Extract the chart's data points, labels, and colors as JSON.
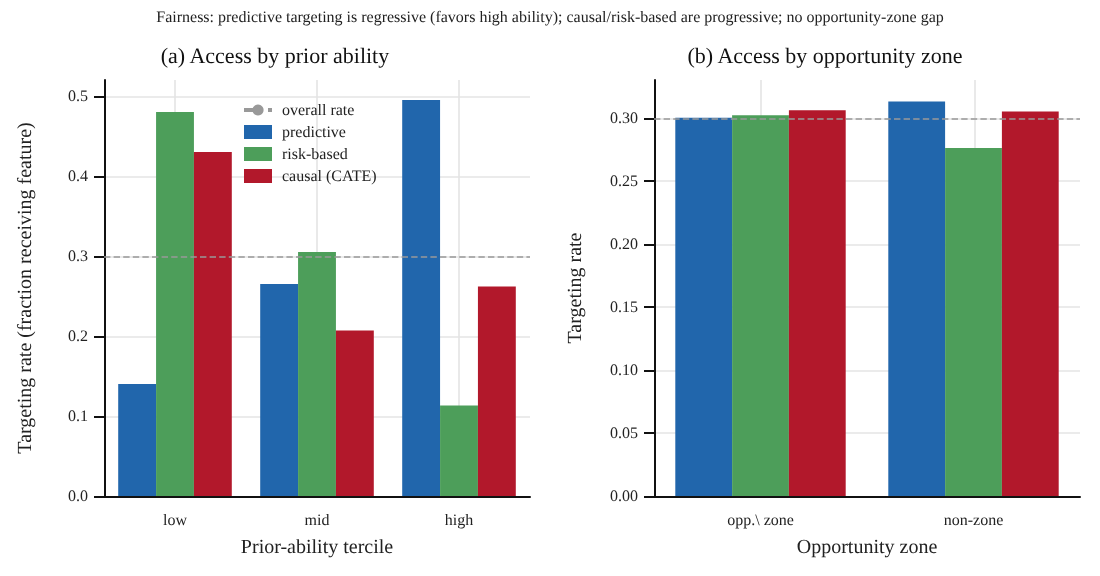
{
  "chart_data": [
    {
      "type": "bar",
      "title": "(a) Access by prior ability",
      "xlabel": "Prior-ability tercile",
      "ylabel": "Targeting rate (fraction receiving feature)",
      "annotations": [
        "Fairness: predictive targeting is regressive (favors high ability); causal/risk-based are progressive; no opportunity-zone gap"
      ],
      "categories": [
        "low",
        "mid",
        "high"
      ],
      "series": [
        {
          "name": "predictive",
          "color": "#2166ac",
          "values": [
            0.14,
            0.265,
            0.495
          ]
        },
        {
          "name": "risk-based",
          "color": "#4d9e5a",
          "values": [
            0.48,
            0.305,
            0.113
          ]
        },
        {
          "name": "causal (CATE)",
          "color": "#b2182b",
          "values": [
            0.43,
            0.207,
            0.262
          ]
        }
      ],
      "ylim": [
        0,
        0.52
      ],
      "yticks": [
        {
          "value": 0,
          "label": "0.0"
        },
        0.1,
        0.2,
        0.3,
        0.4,
        0.5
      ],
      "ref_lines": [
        {
          "axis": "y",
          "value": 0.3,
          "label": "overall rate",
          "color": "#999999",
          "line_style": "dashed"
        }
      ],
      "grid": true,
      "legend": "top"
    },
    {
      "type": "bar",
      "title": "(b) Access by opportunity zone",
      "xlabel": "Opportunity zone",
      "ylabel": "Targeting rate",
      "categories": [
        "opp.\\ zone",
        "non-zone"
      ],
      "series": [
        {
          "color": "#2166ac",
          "values": [
            0.3,
            0.313
          ]
        },
        {
          "color": "#4d9e5a",
          "values": [
            0.302,
            0.276
          ]
        },
        {
          "color": "#b2182b",
          "values": [
            0.306,
            0.305
          ]
        }
      ],
      "ylim": [
        0,
        0.33
      ],
      "yticks": [
        {
          "value": 0,
          "label": "0.00"
        },
        {
          "value": 0.05,
          "label": "0.05"
        },
        {
          "value": 0.1,
          "label": "0.10"
        },
        {
          "value": 0.15,
          "label": "0.15"
        },
        {
          "value": 0.2,
          "label": "0.20"
        },
        {
          "value": 0.25,
          "label": "0.25"
        },
        {
          "value": 0.3,
          "label": "0.30"
        }
      ],
      "ref_lines": [
        {
          "axis": "y",
          "value": 0.3,
          "color": "#999999",
          "line_style": "dashed"
        }
      ],
      "grid": true
    }
  ]
}
